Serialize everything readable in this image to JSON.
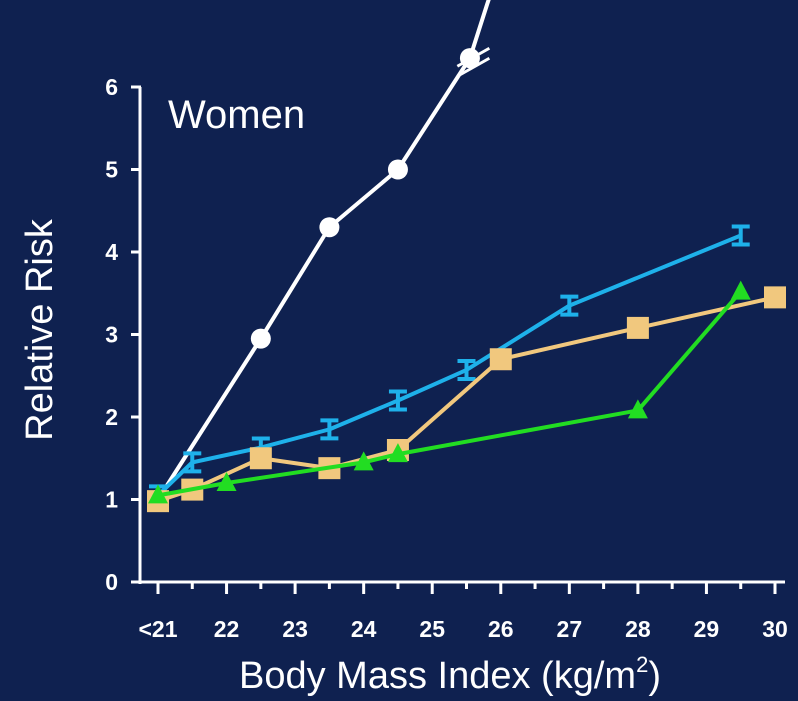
{
  "colors": {
    "background": "#0f2150",
    "axis": "#ffffff",
    "series_white": "#ffffff",
    "series_blue": "#1eb1ea",
    "series_orange": "#f1c87e",
    "series_green": "#22dd22"
  },
  "chart_data": {
    "type": "line",
    "title": "Women",
    "xlabel_main": "Body Mass Index (kg/m",
    "xlabel_sup": "2",
    "xlabel_close": ")",
    "ylabel": "Relative Risk",
    "xlim": [
      21,
      30
    ],
    "ylim": [
      0,
      6
    ],
    "x_ticks": [
      {
        "value": 21,
        "label": "<21"
      },
      {
        "value": 22,
        "label": "22"
      },
      {
        "value": 23,
        "label": "23"
      },
      {
        "value": 24,
        "label": "24"
      },
      {
        "value": 25,
        "label": "25"
      },
      {
        "value": 26,
        "label": "26"
      },
      {
        "value": 27,
        "label": "27"
      },
      {
        "value": 28,
        "label": "28"
      },
      {
        "value": 29,
        "label": "29"
      },
      {
        "value": 30,
        "label": "30"
      }
    ],
    "y_ticks": [
      {
        "value": 0,
        "label": "0"
      },
      {
        "value": 1,
        "label": "1"
      },
      {
        "value": 2,
        "label": "2"
      },
      {
        "value": 3,
        "label": "3"
      },
      {
        "value": 4,
        "label": "4"
      },
      {
        "value": 5,
        "label": "5"
      },
      {
        "value": 6,
        "label": "6"
      }
    ],
    "axis_break": {
      "x": 25.6,
      "y": 6.3
    },
    "series": [
      {
        "color": "#ffffff",
        "marker": "circle",
        "points": [
          [
            21,
            1.0
          ],
          [
            22.5,
            2.95
          ],
          [
            23.5,
            4.3
          ],
          [
            24.5,
            5.0
          ],
          [
            25.55,
            6.35
          ]
        ],
        "line_extension": [
          [
            25.55,
            6.35
          ],
          [
            25.8,
            7.0
          ],
          [
            26.0,
            7.5
          ]
        ]
      },
      {
        "color": "#1eb1ea",
        "marker": "tbar",
        "points": [
          [
            21,
            1.05
          ],
          [
            21.5,
            1.45
          ],
          [
            22.5,
            1.63
          ],
          [
            23.5,
            1.85
          ],
          [
            24.5,
            2.2
          ],
          [
            25.5,
            2.57
          ],
          [
            27.0,
            3.35
          ],
          [
            29.5,
            4.2
          ]
        ]
      },
      {
        "color": "#f1c87e",
        "marker": "square",
        "points": [
          [
            21,
            0.98
          ],
          [
            21.5,
            1.12
          ],
          [
            22.5,
            1.5
          ],
          [
            23.5,
            1.38
          ],
          [
            24.5,
            1.6
          ],
          [
            26.0,
            2.7
          ],
          [
            28.0,
            3.08
          ],
          [
            30.0,
            3.45
          ]
        ]
      },
      {
        "color": "#22dd22",
        "marker": "triangle",
        "points": [
          [
            21,
            1.05
          ],
          [
            22.0,
            1.2
          ],
          [
            24.0,
            1.45
          ],
          [
            24.5,
            1.55
          ],
          [
            28.0,
            2.08
          ],
          [
            29.5,
            3.52
          ]
        ]
      }
    ]
  }
}
